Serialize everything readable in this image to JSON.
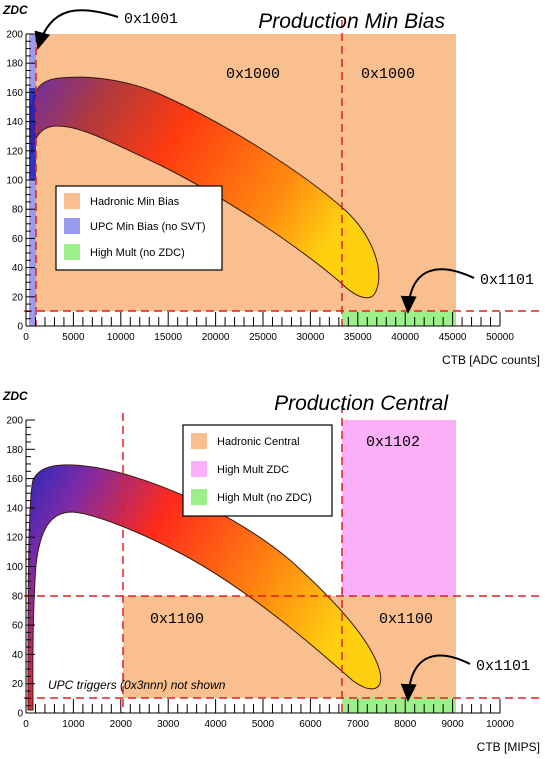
{
  "chart_data": [
    {
      "type": "diagram",
      "title": "Production Min Bias",
      "xlabel": "CTB [ADC counts]",
      "ylabel": "ZDC",
      "xlim": [
        0,
        50000
      ],
      "ylim": [
        0,
        200
      ],
      "x_ticks": [
        "0",
        "5000",
        "10000",
        "15000",
        "20000",
        "25000",
        "30000",
        "35000",
        "40000",
        "45000",
        "50000"
      ],
      "y_ticks": [
        "0",
        "20",
        "40",
        "60",
        "80",
        "100",
        "120",
        "140",
        "160",
        "180",
        "200"
      ],
      "regions": [
        {
          "name": "Hadronic Min Bias",
          "code": "0x1000",
          "x": [
            0,
            33000
          ],
          "y": [
            10,
            200
          ],
          "color": "#f9bf8e"
        },
        {
          "name": "Hadronic Min Bias",
          "code": "0x1000",
          "x": [
            33000,
            45000
          ],
          "y": [
            10,
            200
          ],
          "color": "#f9bf8e"
        },
        {
          "name": "UPC Min Bias (no SVT)",
          "code": "0x1001",
          "x": [
            0,
            700
          ],
          "y": [
            0,
            200
          ],
          "color": "#9a9af0"
        },
        {
          "name": "High Mult (no ZDC)",
          "code": "0x1101",
          "x": [
            33000,
            45000
          ],
          "y": [
            0,
            10
          ],
          "color": "#9cf08a"
        }
      ],
      "cut_lines": {
        "x": [
          700,
          33000
        ],
        "y": [
          10
        ]
      },
      "codes": [
        {
          "text": "0x1001",
          "type": "pointer"
        },
        {
          "text": "0x1000",
          "type": "label"
        },
        {
          "text": "0x1000",
          "type": "label"
        },
        {
          "text": "0x1101",
          "type": "pointer"
        }
      ],
      "legend": [
        {
          "label": "Hadronic Min Bias",
          "color": "#f9bf8e"
        },
        {
          "label": "UPC Min Bias (no SVT)",
          "color": "#9a9af0"
        },
        {
          "label": "High Mult (no ZDC)",
          "color": "#9cf08a"
        }
      ]
    },
    {
      "type": "diagram",
      "title": "Production Central",
      "xlabel": "CTB [MIPS]",
      "ylabel": "ZDC",
      "xlim": [
        0,
        10000
      ],
      "ylim": [
        0,
        200
      ],
      "x_ticks": [
        "0",
        "1000",
        "2000",
        "3000",
        "4000",
        "5000",
        "6000",
        "7000",
        "8000",
        "9000",
        "10000"
      ],
      "y_ticks": [
        "0",
        "20",
        "40",
        "60",
        "80",
        "100",
        "120",
        "140",
        "160",
        "180",
        "200"
      ],
      "regions": [
        {
          "name": "Hadronic Central",
          "code": "0x1100",
          "x": [
            2000,
            6600
          ],
          "y": [
            10,
            80
          ],
          "color": "#f9bf8e"
        },
        {
          "name": "Hadronic Central",
          "code": "0x1100",
          "x": [
            6600,
            9000
          ],
          "y": [
            10,
            80
          ],
          "color": "#f9bf8e"
        },
        {
          "name": "High Mult ZDC",
          "code": "0x1102",
          "x": [
            6600,
            9000
          ],
          "y": [
            80,
            200
          ],
          "color": "#fbb0f8"
        },
        {
          "name": "High Mult (no ZDC)",
          "code": "0x1101",
          "x": [
            6600,
            9000
          ],
          "y": [
            0,
            10
          ],
          "color": "#9cf08a"
        }
      ],
      "cut_lines": {
        "x": [
          2000,
          6600
        ],
        "y": [
          80,
          10
        ]
      },
      "codes": [
        {
          "text": "0x1102",
          "type": "label"
        },
        {
          "text": "0x1100",
          "type": "label"
        },
        {
          "text": "0x1100",
          "type": "label"
        },
        {
          "text": "0x1101",
          "type": "pointer"
        }
      ],
      "legend": [
        {
          "label": "Hadronic Central",
          "color": "#f9bf8e"
        },
        {
          "label": "High Mult ZDC",
          "color": "#fbb0f8"
        },
        {
          "label": "High Mult (no ZDC)",
          "color": "#9cf08a"
        }
      ],
      "note": "UPC triggers (0x3nnn) not shown"
    }
  ]
}
